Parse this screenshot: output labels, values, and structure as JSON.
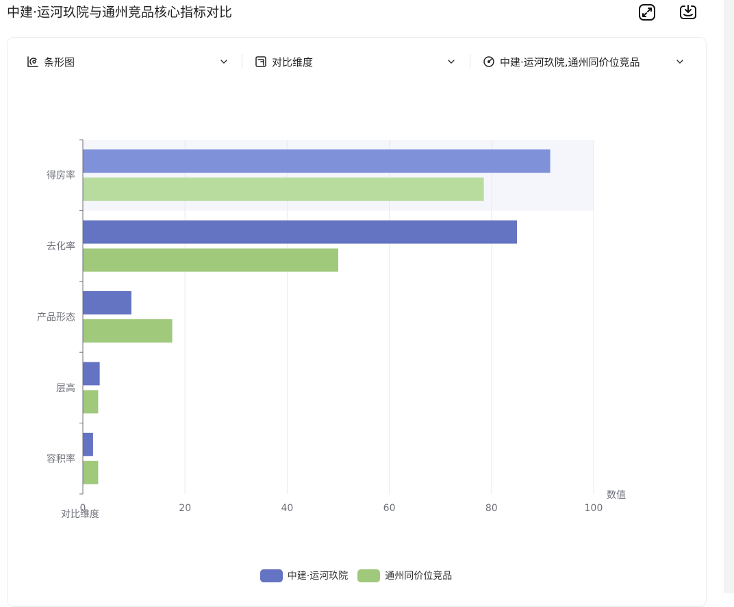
{
  "page": {
    "title": "中建·运河玖院与通州竞品核心指标对比",
    "actions": [
      {
        "name": "expand-icon"
      },
      {
        "name": "download-icon"
      }
    ]
  },
  "toolbar": {
    "chart_type": {
      "label": "条形图",
      "icon": "chart-type-icon"
    },
    "dimension": {
      "label": "对比维度",
      "icon": "dimension-icon"
    },
    "series": {
      "label": "中建·运河玖院,通州同价位竞品",
      "icon": "target-icon"
    }
  },
  "chart_data": {
    "type": "bar",
    "orientation": "horizontal",
    "categories": [
      "得房率",
      "去化率",
      "产品形态",
      "层高",
      "容积率"
    ],
    "series": [
      {
        "name": "中建·运河玖院",
        "values": [
          91.5,
          85,
          9.5,
          3.3,
          2
        ],
        "color": "#6473c2"
      },
      {
        "name": "通州同价位竞品",
        "values": [
          78.5,
          50,
          17.5,
          3,
          3
        ],
        "color": "#a0c97c"
      }
    ],
    "highlight_category": "得房率",
    "xlabel": "数值",
    "ylabel": "对比维度",
    "xlim": [
      0,
      100
    ],
    "xticks": [
      0,
      20,
      40,
      60,
      80,
      100
    ],
    "grid": true,
    "legend": "bottom-center"
  },
  "colors": {
    "series_1": "#6473c2",
    "series_1_highlight": "#7f91d9",
    "series_2": "#a0c97c",
    "series_2_highlight": "#b8dc9e",
    "highlight_band": "#f5f6fb"
  }
}
